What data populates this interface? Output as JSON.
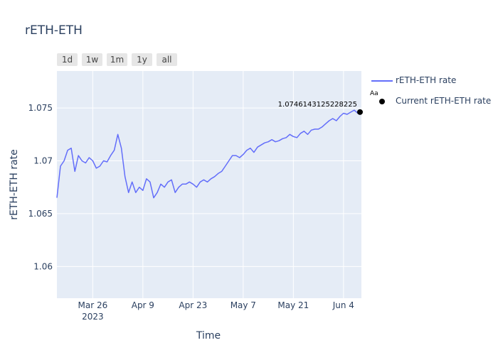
{
  "title": "rETH-ETH",
  "range_buttons": [
    "1d",
    "1w",
    "1m",
    "1y",
    "all"
  ],
  "chart_data": {
    "type": "line",
    "title": "rETH-ETH",
    "xlabel": "Time",
    "ylabel": "rETH-ETH rate",
    "x_ticks": [
      "Mar 26\n2023",
      "Apr 9",
      "Apr 23",
      "May 7",
      "May 21",
      "Jun 4"
    ],
    "y_ticks": [
      "1.06",
      "1.065",
      "1.07",
      "1.075"
    ],
    "ylim": [
      1.057,
      1.0785
    ],
    "xlim": [
      "2023-03-16",
      "2023-06-09"
    ],
    "grid": true,
    "legend_placement": "top-right",
    "series": [
      {
        "name": "rETH-ETH rate",
        "color": "#636efa",
        "x": [
          "2023-03-16",
          "2023-03-17",
          "2023-03-18",
          "2023-03-19",
          "2023-03-20",
          "2023-03-21",
          "2023-03-22",
          "2023-03-23",
          "2023-03-24",
          "2023-03-25",
          "2023-03-26",
          "2023-03-27",
          "2023-03-28",
          "2023-03-29",
          "2023-03-30",
          "2023-03-31",
          "2023-04-01",
          "2023-04-02",
          "2023-04-03",
          "2023-04-04",
          "2023-04-05",
          "2023-04-06",
          "2023-04-07",
          "2023-04-08",
          "2023-04-09",
          "2023-04-10",
          "2023-04-11",
          "2023-04-12",
          "2023-04-13",
          "2023-04-14",
          "2023-04-15",
          "2023-04-16",
          "2023-04-17",
          "2023-04-18",
          "2023-04-19",
          "2023-04-20",
          "2023-04-21",
          "2023-04-22",
          "2023-04-23",
          "2023-04-24",
          "2023-04-25",
          "2023-04-26",
          "2023-04-27",
          "2023-04-28",
          "2023-04-29",
          "2023-04-30",
          "2023-05-01",
          "2023-05-02",
          "2023-05-03",
          "2023-05-04",
          "2023-05-05",
          "2023-05-06",
          "2023-05-07",
          "2023-05-08",
          "2023-05-09",
          "2023-05-10",
          "2023-05-11",
          "2023-05-12",
          "2023-05-13",
          "2023-05-14",
          "2023-05-15",
          "2023-05-16",
          "2023-05-17",
          "2023-05-18",
          "2023-05-19",
          "2023-05-20",
          "2023-05-21",
          "2023-05-22",
          "2023-05-23",
          "2023-05-24",
          "2023-05-25",
          "2023-05-26",
          "2023-05-27",
          "2023-05-28",
          "2023-05-29",
          "2023-05-30",
          "2023-05-31",
          "2023-06-01",
          "2023-06-02",
          "2023-06-03",
          "2023-06-04",
          "2023-06-05",
          "2023-06-06",
          "2023-06-07",
          "2023-06-08",
          "2023-06-09"
        ],
        "y": [
          1.0665,
          1.0695,
          1.07,
          1.071,
          1.0712,
          1.069,
          1.0705,
          1.07,
          1.0698,
          1.0703,
          1.07,
          1.0693,
          1.0695,
          1.07,
          1.0699,
          1.0705,
          1.071,
          1.0725,
          1.0712,
          1.0685,
          1.067,
          1.068,
          1.067,
          1.0675,
          1.0672,
          1.0683,
          1.068,
          1.0665,
          1.067,
          1.0678,
          1.0675,
          1.068,
          1.0682,
          1.067,
          1.0675,
          1.0678,
          1.0678,
          1.068,
          1.0678,
          1.0675,
          1.068,
          1.0682,
          1.068,
          1.0683,
          1.0685,
          1.0688,
          1.069,
          1.0695,
          1.07,
          1.0705,
          1.0705,
          1.0703,
          1.0706,
          1.071,
          1.0712,
          1.0708,
          1.0713,
          1.0715,
          1.0717,
          1.0718,
          1.072,
          1.0718,
          1.0719,
          1.0721,
          1.0722,
          1.0725,
          1.0723,
          1.0722,
          1.0726,
          1.0728,
          1.0725,
          1.0729,
          1.073,
          1.073,
          1.0732,
          1.0735,
          1.0738,
          1.074,
          1.0738,
          1.0742,
          1.0745,
          1.0744,
          1.0746,
          1.0748,
          1.0745,
          1.0746
        ]
      },
      {
        "name": "Current rETH-ETH rate",
        "color": "#000000",
        "mode": "markers+text",
        "x": [
          "2023-06-09"
        ],
        "y": [
          1.0746143125228225
        ],
        "text": "1.0746143125228225"
      }
    ]
  }
}
